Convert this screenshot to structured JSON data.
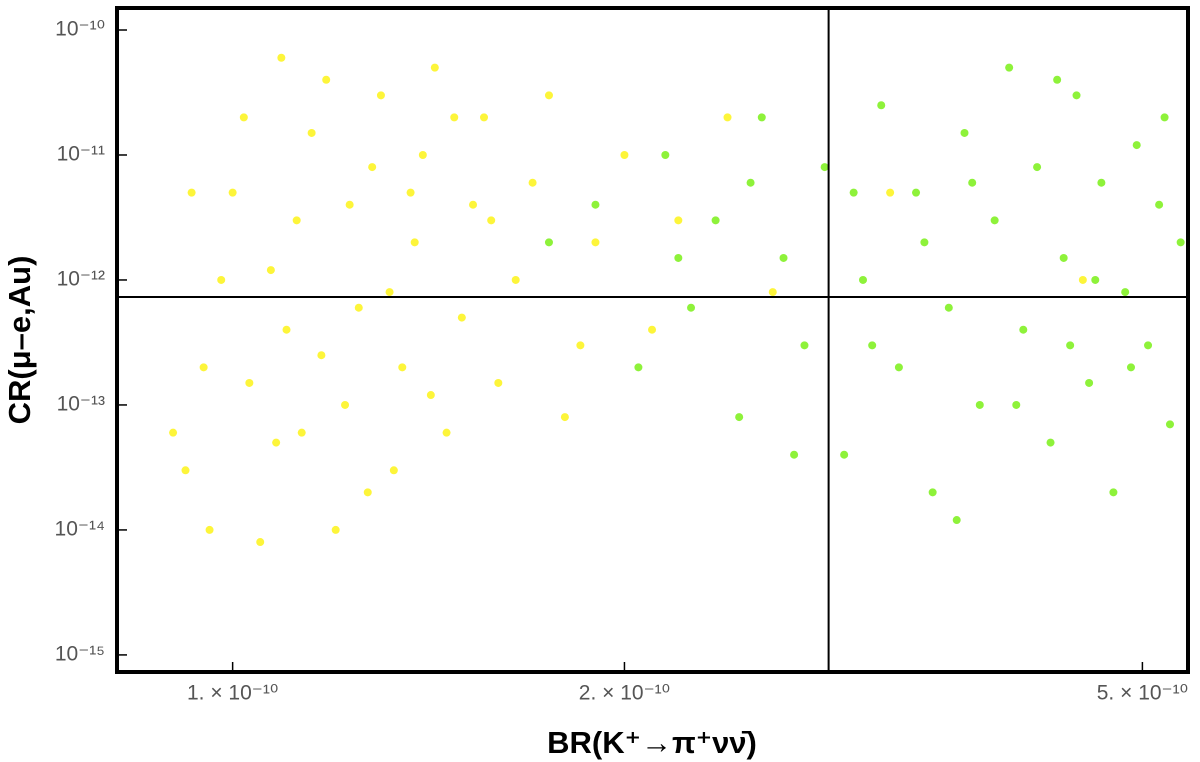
{
  "chart_data": {
    "type": "scatter",
    "x_label": "BR(K⁺→π⁺νν̄)",
    "y_label": "CR(μ–e,Au)",
    "xlog": true,
    "ylog": true,
    "xlim": [
      8.15e-11,
      5.42e-10
    ],
    "ylim": [
      7.3e-16,
      1.5e-10
    ],
    "xticks": [
      {
        "value": 1e-10,
        "label": "1. × 10⁻¹⁰"
      },
      {
        "value": 2e-10,
        "label": "2. × 10⁻¹⁰"
      },
      {
        "value": 5e-10,
        "label": "5. × 10⁻¹⁰"
      }
    ],
    "yticks": [
      {
        "value": 1e-15,
        "label": "10⁻¹⁵"
      },
      {
        "value": 1e-14,
        "label": "10⁻¹⁴"
      },
      {
        "value": 1e-13,
        "label": "10⁻¹³"
      },
      {
        "value": 1e-12,
        "label": "10⁻¹²"
      },
      {
        "value": 1e-11,
        "label": "10⁻¹¹"
      },
      {
        "value": 1e-10,
        "label": "10⁻¹⁰"
      }
    ],
    "hlines": [
      7.3e-13
    ],
    "vlines": [
      2.87e-10
    ],
    "series": [
      {
        "color": "#fdf53a",
        "x": [
          9.2e-11,
          9.5e-11,
          9.8e-11,
          1e-10,
          1.02e-10,
          1.05e-10,
          1.08e-10,
          1.1e-10,
          1.12e-10,
          1.15e-10,
          1.18e-10,
          1.2e-10,
          1.22e-10,
          1.25e-10,
          1.28e-10,
          1.3e-10,
          1.33e-10,
          1.35e-10,
          1.38e-10,
          1.4e-10,
          1.43e-10,
          1.46e-10,
          1.5e-10,
          1.53e-10,
          1.56e-10,
          1.6e-10,
          1.65e-10,
          1.7e-10,
          1.75e-10,
          1.8e-10,
          1.85e-10,
          1.9e-10,
          2e-10,
          2.1e-10,
          2.2e-10,
          2.4e-10,
          2.6e-10,
          3.2e-10,
          9e-11,
          9.3e-11,
          9.6e-11,
          1.03e-10,
          1.07e-10,
          1.13e-10,
          1.17e-10,
          1.23e-10,
          1.27e-10,
          1.32e-10,
          1.37e-10,
          1.42e-10,
          1.48e-10,
          1.58e-10,
          4.5e-10,
          1.09e-10
        ],
        "values": [
          3e-14,
          2e-13,
          1e-12,
          5e-12,
          2e-11,
          8e-15,
          5e-14,
          4e-13,
          3e-12,
          1.5e-11,
          4e-11,
          1e-14,
          1e-13,
          6e-13,
          8e-12,
          3e-11,
          3e-14,
          2e-13,
          2e-12,
          1e-11,
          5e-11,
          6e-14,
          5e-13,
          4e-12,
          2e-11,
          1.5e-13,
          1e-12,
          6e-12,
          3e-11,
          8e-14,
          3e-13,
          2e-12,
          1e-11,
          4e-13,
          3e-12,
          2e-11,
          8e-13,
          5e-12,
          6e-14,
          5e-12,
          1e-14,
          1.5e-13,
          1.2e-12,
          6e-14,
          2.5e-13,
          4e-12,
          2e-14,
          8e-13,
          5e-12,
          1.2e-13,
          2e-11,
          3e-12,
          1e-12,
          6e-11
        ]
      },
      {
        "color": "#8ef23a",
        "x": [
          1.9e-10,
          2.05e-10,
          2.15e-10,
          2.25e-10,
          2.35e-10,
          2.45e-10,
          2.55e-10,
          2.65e-10,
          2.75e-10,
          2.85e-10,
          2.95e-10,
          3.05e-10,
          3.15e-10,
          3.25e-10,
          3.35e-10,
          3.45e-10,
          3.55e-10,
          3.65e-10,
          3.75e-10,
          3.85e-10,
          3.95e-10,
          4.05e-10,
          4.15e-10,
          4.25e-10,
          4.35e-10,
          4.45e-10,
          4.55e-10,
          4.65e-10,
          4.75e-10,
          4.85e-10,
          4.95e-10,
          5.05e-10,
          5.15e-10,
          5.25e-10,
          5.35e-10,
          3.1e-10,
          3.4e-10,
          3.7e-10,
          4e-10,
          4.3e-10,
          4.6e-10,
          4.9e-10,
          5.2e-10,
          2.5e-10,
          2.2e-10,
          2.7e-10,
          3e-10,
          1.75e-10,
          3.6e-10,
          4.4e-10
        ],
        "values": [
          4e-12,
          2e-13,
          1e-11,
          6e-13,
          3e-12,
          8e-14,
          2e-11,
          1.5e-12,
          3e-13,
          8e-12,
          4e-14,
          1e-12,
          2.5e-11,
          2e-13,
          5e-12,
          2e-14,
          6e-13,
          1.5e-11,
          1e-13,
          3e-12,
          5e-11,
          4e-13,
          8e-12,
          5e-14,
          1.5e-12,
          3e-11,
          1.5e-13,
          6e-12,
          2e-14,
          8e-13,
          1.2e-11,
          3e-13,
          4e-12,
          7e-14,
          2e-12,
          3e-13,
          2e-12,
          6e-12,
          1e-13,
          4e-11,
          1e-12,
          2e-13,
          2e-11,
          6e-12,
          1.5e-12,
          4e-14,
          5e-12,
          2e-12,
          1.2e-14,
          3e-13
        ]
      }
    ]
  }
}
